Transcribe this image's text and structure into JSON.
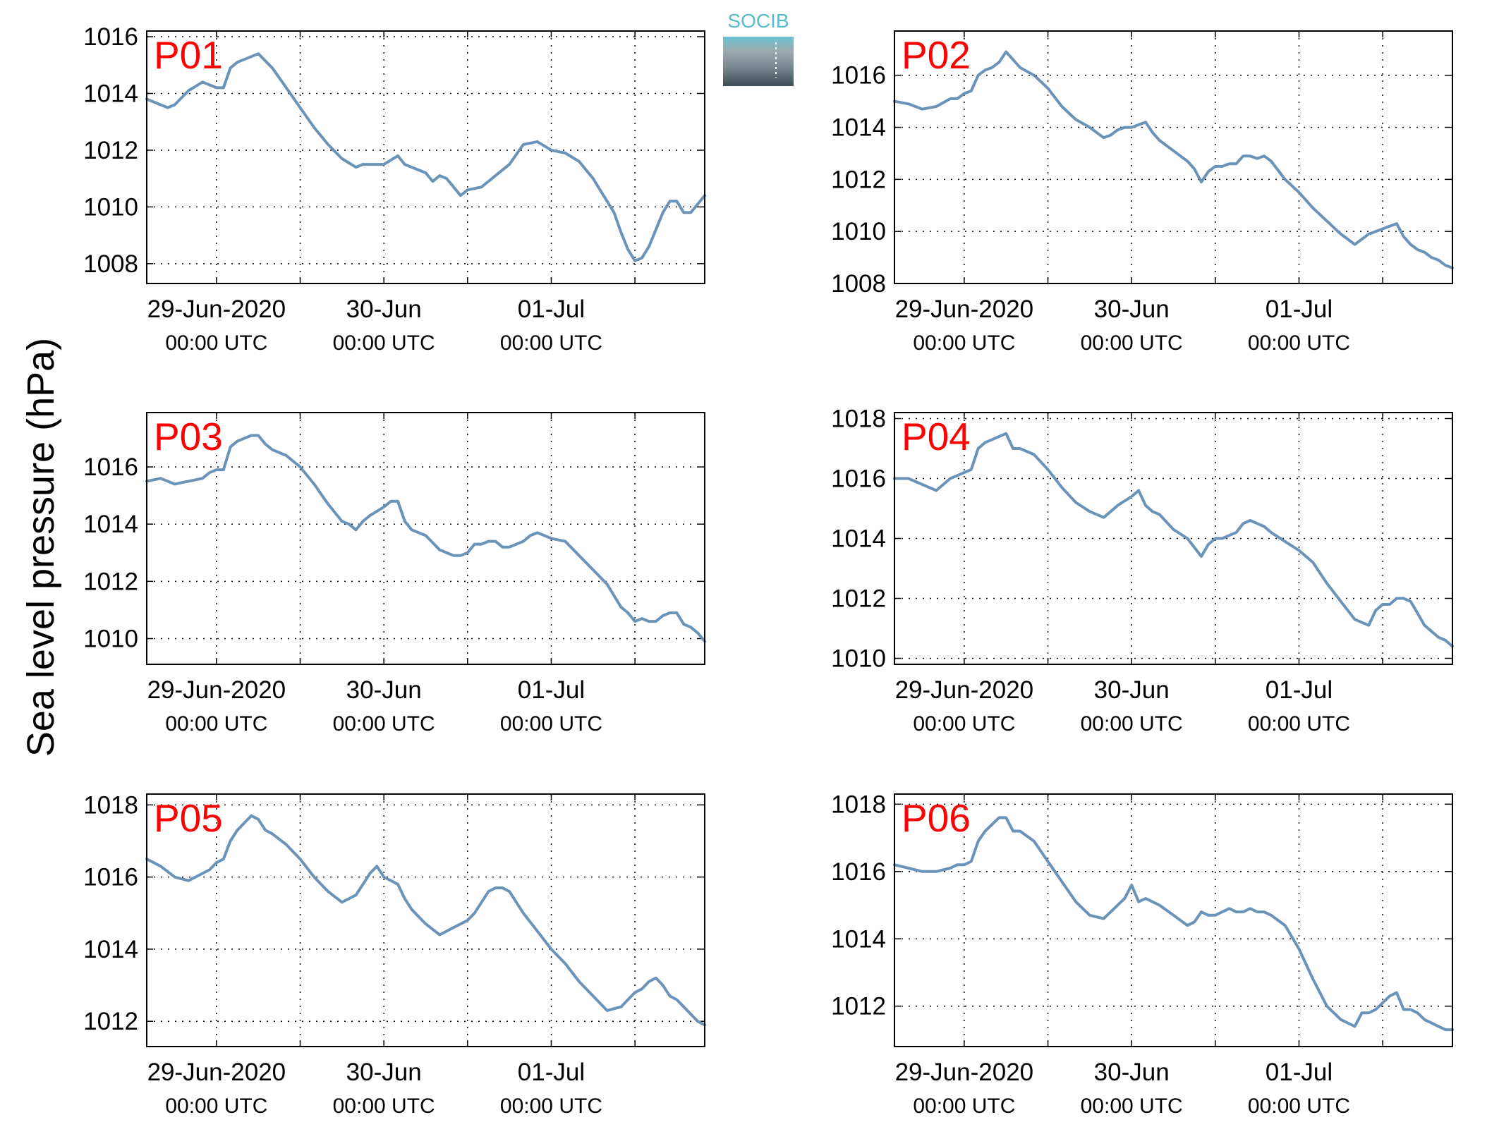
{
  "figure": {
    "ylabel": "Sea level pressure (hPa)",
    "logo_text": "SOCIB",
    "line_color": "#6a93b8",
    "station_label_color": "#ff0000"
  },
  "chart_data": [
    {
      "type": "line",
      "station": "P01",
      "x_unit": "hours since 29-Jun-2020 00:00 UTC",
      "xlim": [
        -10,
        70
      ],
      "ylim": [
        1007.3,
        1016.2
      ],
      "yticks": [
        1008,
        1010,
        1012,
        1014,
        1016
      ],
      "xtick_labels": [
        [
          "29-Jun-2020",
          "00:00 UTC"
        ],
        [
          "30-Jun",
          "00:00 UTC"
        ],
        [
          "01-Jul",
          "00:00 UTC"
        ]
      ],
      "grid": true,
      "x": [
        -10,
        -8,
        -7,
        -6,
        -4,
        -2,
        -1,
        0,
        1,
        2,
        3,
        4,
        6,
        8,
        10,
        12,
        14,
        16,
        18,
        20,
        21,
        22,
        23,
        24,
        26,
        27,
        28,
        29,
        30,
        31,
        32,
        33,
        34,
        35,
        36,
        38,
        40,
        42,
        44,
        46,
        48,
        50,
        52,
        54,
        55,
        56,
        57,
        58,
        59,
        60,
        61,
        62,
        63,
        64,
        65,
        66,
        67,
        68,
        69,
        70
      ],
      "y": [
        1013.8,
        1013.6,
        1013.5,
        1013.6,
        1014.1,
        1014.4,
        1014.3,
        1014.2,
        1014.2,
        1014.9,
        1015.1,
        1015.2,
        1015.4,
        1014.9,
        1014.2,
        1013.5,
        1012.8,
        1012.2,
        1011.7,
        1011.4,
        1011.5,
        1011.5,
        1011.5,
        1011.5,
        1011.8,
        1011.5,
        1011.4,
        1011.3,
        1011.2,
        1010.9,
        1011.1,
        1011.0,
        1010.7,
        1010.4,
        1010.6,
        1010.7,
        1011.1,
        1011.5,
        1012.2,
        1012.3,
        1012.0,
        1011.9,
        1011.6,
        1011.0,
        1010.6,
        1010.2,
        1009.8,
        1009.1,
        1008.5,
        1008.1,
        1008.2,
        1008.6,
        1009.2,
        1009.8,
        1010.2,
        1010.2,
        1009.8,
        1009.8,
        1010.1,
        1010.4
      ]
    },
    {
      "type": "line",
      "station": "P02",
      "x_unit": "hours since 29-Jun-2020 00:00 UTC",
      "xlim": [
        -10,
        70
      ],
      "ylim": [
        1008,
        1017.7
      ],
      "yticks": [
        1008,
        1010,
        1012,
        1014,
        1016
      ],
      "xtick_labels": [
        [
          "29-Jun-2020",
          "00:00 UTC"
        ],
        [
          "30-Jun",
          "00:00 UTC"
        ],
        [
          "01-Jul",
          "00:00 UTC"
        ]
      ],
      "grid": true,
      "x": [
        -10,
        -8,
        -6,
        -4,
        -2,
        -1,
        0,
        1,
        2,
        3,
        4,
        5,
        6,
        7,
        8,
        10,
        12,
        14,
        16,
        18,
        20,
        21,
        22,
        23,
        24,
        25,
        26,
        27,
        28,
        30,
        32,
        33,
        34,
        35,
        36,
        37,
        38,
        39,
        40,
        41,
        42,
        43,
        44,
        46,
        48,
        50,
        52,
        54,
        56,
        58,
        59,
        60,
        61,
        62,
        63,
        64,
        65,
        66,
        67,
        68,
        69,
        70
      ],
      "y": [
        1015.0,
        1014.9,
        1014.7,
        1014.8,
        1015.1,
        1015.1,
        1015.3,
        1015.4,
        1016.0,
        1016.2,
        1016.3,
        1016.5,
        1016.9,
        1016.6,
        1016.3,
        1016.0,
        1015.5,
        1014.8,
        1014.3,
        1014.0,
        1013.6,
        1013.7,
        1013.9,
        1014.0,
        1014.0,
        1014.1,
        1014.2,
        1013.8,
        1013.5,
        1013.1,
        1012.7,
        1012.4,
        1011.9,
        1012.3,
        1012.5,
        1012.5,
        1012.6,
        1012.6,
        1012.9,
        1012.9,
        1012.8,
        1012.9,
        1012.7,
        1012.0,
        1011.5,
        1010.9,
        1010.4,
        1009.9,
        1009.5,
        1009.9,
        1010.0,
        1010.1,
        1010.2,
        1010.3,
        1009.8,
        1009.5,
        1009.3,
        1009.2,
        1009.0,
        1008.9,
        1008.7,
        1008.6
      ]
    },
    {
      "type": "line",
      "station": "P03",
      "x_unit": "hours since 29-Jun-2020 00:00 UTC",
      "xlim": [
        -10,
        70
      ],
      "ylim": [
        1009.1,
        1017.9
      ],
      "yticks": [
        1010,
        1012,
        1014,
        1016
      ],
      "xtick_labels": [
        [
          "29-Jun-2020",
          "00:00 UTC"
        ],
        [
          "30-Jun",
          "00:00 UTC"
        ],
        [
          "01-Jul",
          "00:00 UTC"
        ]
      ],
      "grid": true,
      "x": [
        -10,
        -8,
        -6,
        -4,
        -2,
        -1,
        0,
        1,
        2,
        3,
        4,
        5,
        6,
        7,
        8,
        10,
        12,
        14,
        16,
        18,
        19,
        20,
        21,
        22,
        24,
        25,
        26,
        27,
        28,
        30,
        32,
        34,
        35,
        36,
        37,
        38,
        39,
        40,
        41,
        42,
        43,
        44,
        45,
        46,
        47,
        48,
        50,
        52,
        54,
        56,
        58,
        59,
        60,
        61,
        62,
        63,
        64,
        65,
        66,
        67,
        68,
        69,
        70
      ],
      "y": [
        1015.5,
        1015.6,
        1015.4,
        1015.5,
        1015.6,
        1015.8,
        1015.9,
        1015.9,
        1016.7,
        1016.9,
        1017.0,
        1017.1,
        1017.1,
        1016.8,
        1016.6,
        1016.4,
        1016.0,
        1015.4,
        1014.7,
        1014.1,
        1014.0,
        1013.8,
        1014.1,
        1014.3,
        1014.6,
        1014.8,
        1014.8,
        1014.1,
        1013.8,
        1013.6,
        1013.1,
        1012.9,
        1012.9,
        1013.0,
        1013.3,
        1013.3,
        1013.4,
        1013.4,
        1013.2,
        1013.2,
        1013.3,
        1013.4,
        1013.6,
        1013.7,
        1013.6,
        1013.5,
        1013.4,
        1012.9,
        1012.4,
        1011.9,
        1011.1,
        1010.9,
        1010.6,
        1010.7,
        1010.6,
        1010.6,
        1010.8,
        1010.9,
        1010.9,
        1010.5,
        1010.4,
        1010.2,
        1009.9
      ]
    },
    {
      "type": "line",
      "station": "P04",
      "x_unit": "hours since 29-Jun-2020 00:00 UTC",
      "xlim": [
        -10,
        70
      ],
      "ylim": [
        1009.8,
        1018.2
      ],
      "yticks": [
        1010,
        1012,
        1014,
        1016,
        1018
      ],
      "xtick_labels": [
        [
          "29-Jun-2020",
          "00:00 UTC"
        ],
        [
          "30-Jun",
          "00:00 UTC"
        ],
        [
          "01-Jul",
          "00:00 UTC"
        ]
      ],
      "grid": true,
      "x": [
        -10,
        -8,
        -6,
        -4,
        -2,
        -1,
        0,
        1,
        2,
        3,
        4,
        5,
        6,
        7,
        8,
        10,
        12,
        14,
        16,
        18,
        20,
        21,
        22,
        24,
        25,
        26,
        27,
        28,
        30,
        32,
        34,
        35,
        36,
        37,
        38,
        39,
        40,
        41,
        42,
        43,
        44,
        46,
        48,
        50,
        52,
        54,
        56,
        58,
        59,
        60,
        61,
        62,
        63,
        64,
        65,
        66,
        67,
        68,
        69,
        70
      ],
      "y": [
        1016.0,
        1016.0,
        1015.8,
        1015.6,
        1016.0,
        1016.1,
        1016.2,
        1016.3,
        1017.0,
        1017.2,
        1017.3,
        1017.4,
        1017.5,
        1017.0,
        1017.0,
        1016.8,
        1016.3,
        1015.7,
        1015.2,
        1014.9,
        1014.7,
        1014.9,
        1015.1,
        1015.4,
        1015.6,
        1015.1,
        1014.9,
        1014.8,
        1014.3,
        1014.0,
        1013.4,
        1013.8,
        1014.0,
        1014.0,
        1014.1,
        1014.2,
        1014.5,
        1014.6,
        1014.5,
        1014.4,
        1014.2,
        1013.9,
        1013.6,
        1013.2,
        1012.5,
        1011.9,
        1011.3,
        1011.1,
        1011.6,
        1011.8,
        1011.8,
        1012.0,
        1012.0,
        1011.9,
        1011.5,
        1011.1,
        1010.9,
        1010.7,
        1010.6,
        1010.4
      ]
    },
    {
      "type": "line",
      "station": "P05",
      "x_unit": "hours since 29-Jun-2020 00:00 UTC",
      "xlim": [
        -10,
        70
      ],
      "ylim": [
        1011.3,
        1018.3
      ],
      "yticks": [
        1012,
        1014,
        1016,
        1018
      ],
      "xtick_labels": [
        [
          "29-Jun-2020",
          "00:00 UTC"
        ],
        [
          "30-Jun",
          "00:00 UTC"
        ],
        [
          "01-Jul",
          "00:00 UTC"
        ]
      ],
      "grid": true,
      "x": [
        -10,
        -8,
        -6,
        -4,
        -2,
        -1,
        0,
        1,
        2,
        3,
        4,
        5,
        6,
        7,
        8,
        10,
        12,
        14,
        16,
        18,
        20,
        21,
        22,
        23,
        24,
        25,
        26,
        27,
        28,
        30,
        32,
        34,
        35,
        36,
        37,
        38,
        39,
        40,
        41,
        42,
        43,
        44,
        46,
        48,
        50,
        52,
        54,
        56,
        58,
        59,
        60,
        61,
        62,
        63,
        64,
        65,
        66,
        67,
        68,
        69,
        70
      ],
      "y": [
        1016.5,
        1016.3,
        1016.0,
        1015.9,
        1016.1,
        1016.2,
        1016.4,
        1016.5,
        1017.0,
        1017.3,
        1017.5,
        1017.7,
        1017.6,
        1017.3,
        1017.2,
        1016.9,
        1016.5,
        1016.0,
        1015.6,
        1015.3,
        1015.5,
        1015.8,
        1016.1,
        1016.3,
        1016.0,
        1015.9,
        1015.8,
        1015.4,
        1015.1,
        1014.7,
        1014.4,
        1014.6,
        1014.7,
        1014.8,
        1015.0,
        1015.3,
        1015.6,
        1015.7,
        1015.7,
        1015.6,
        1015.3,
        1015.0,
        1014.5,
        1014.0,
        1013.6,
        1013.1,
        1012.7,
        1012.3,
        1012.4,
        1012.6,
        1012.8,
        1012.9,
        1013.1,
        1013.2,
        1013.0,
        1012.7,
        1012.6,
        1012.4,
        1012.2,
        1012.0,
        1011.9
      ]
    },
    {
      "type": "line",
      "station": "P06",
      "x_unit": "hours since 29-Jun-2020 00:00 UTC",
      "xlim": [
        -10,
        70
      ],
      "ylim": [
        1010.8,
        1018.3
      ],
      "yticks": [
        1012,
        1014,
        1016,
        1018
      ],
      "xtick_labels": [
        [
          "29-Jun-2020",
          "00:00 UTC"
        ],
        [
          "30-Jun",
          "00:00 UTC"
        ],
        [
          "01-Jul",
          "00:00 UTC"
        ]
      ],
      "grid": true,
      "x": [
        -10,
        -8,
        -6,
        -4,
        -2,
        -1,
        0,
        1,
        2,
        3,
        4,
        5,
        6,
        7,
        8,
        10,
        12,
        14,
        16,
        18,
        20,
        21,
        22,
        23,
        24,
        25,
        26,
        27,
        28,
        30,
        32,
        33,
        34,
        35,
        36,
        37,
        38,
        39,
        40,
        41,
        42,
        43,
        44,
        46,
        48,
        50,
        52,
        54,
        56,
        57,
        58,
        59,
        60,
        61,
        62,
        63,
        64,
        65,
        66,
        67,
        68,
        69,
        70
      ],
      "y": [
        1016.2,
        1016.1,
        1016.0,
        1016.0,
        1016.1,
        1016.2,
        1016.2,
        1016.3,
        1016.9,
        1017.2,
        1017.4,
        1017.6,
        1017.6,
        1017.2,
        1017.2,
        1016.9,
        1016.3,
        1015.7,
        1015.1,
        1014.7,
        1014.6,
        1014.8,
        1015.0,
        1015.2,
        1015.6,
        1015.1,
        1015.2,
        1015.1,
        1015.0,
        1014.7,
        1014.4,
        1014.5,
        1014.8,
        1014.7,
        1014.7,
        1014.8,
        1014.9,
        1014.8,
        1014.8,
        1014.9,
        1014.8,
        1014.8,
        1014.7,
        1014.4,
        1013.7,
        1012.8,
        1012.0,
        1011.6,
        1011.4,
        1011.8,
        1011.8,
        1011.9,
        1012.1,
        1012.3,
        1012.4,
        1011.9,
        1011.9,
        1011.8,
        1011.6,
        1011.5,
        1011.4,
        1011.3,
        1011.3
      ]
    }
  ]
}
